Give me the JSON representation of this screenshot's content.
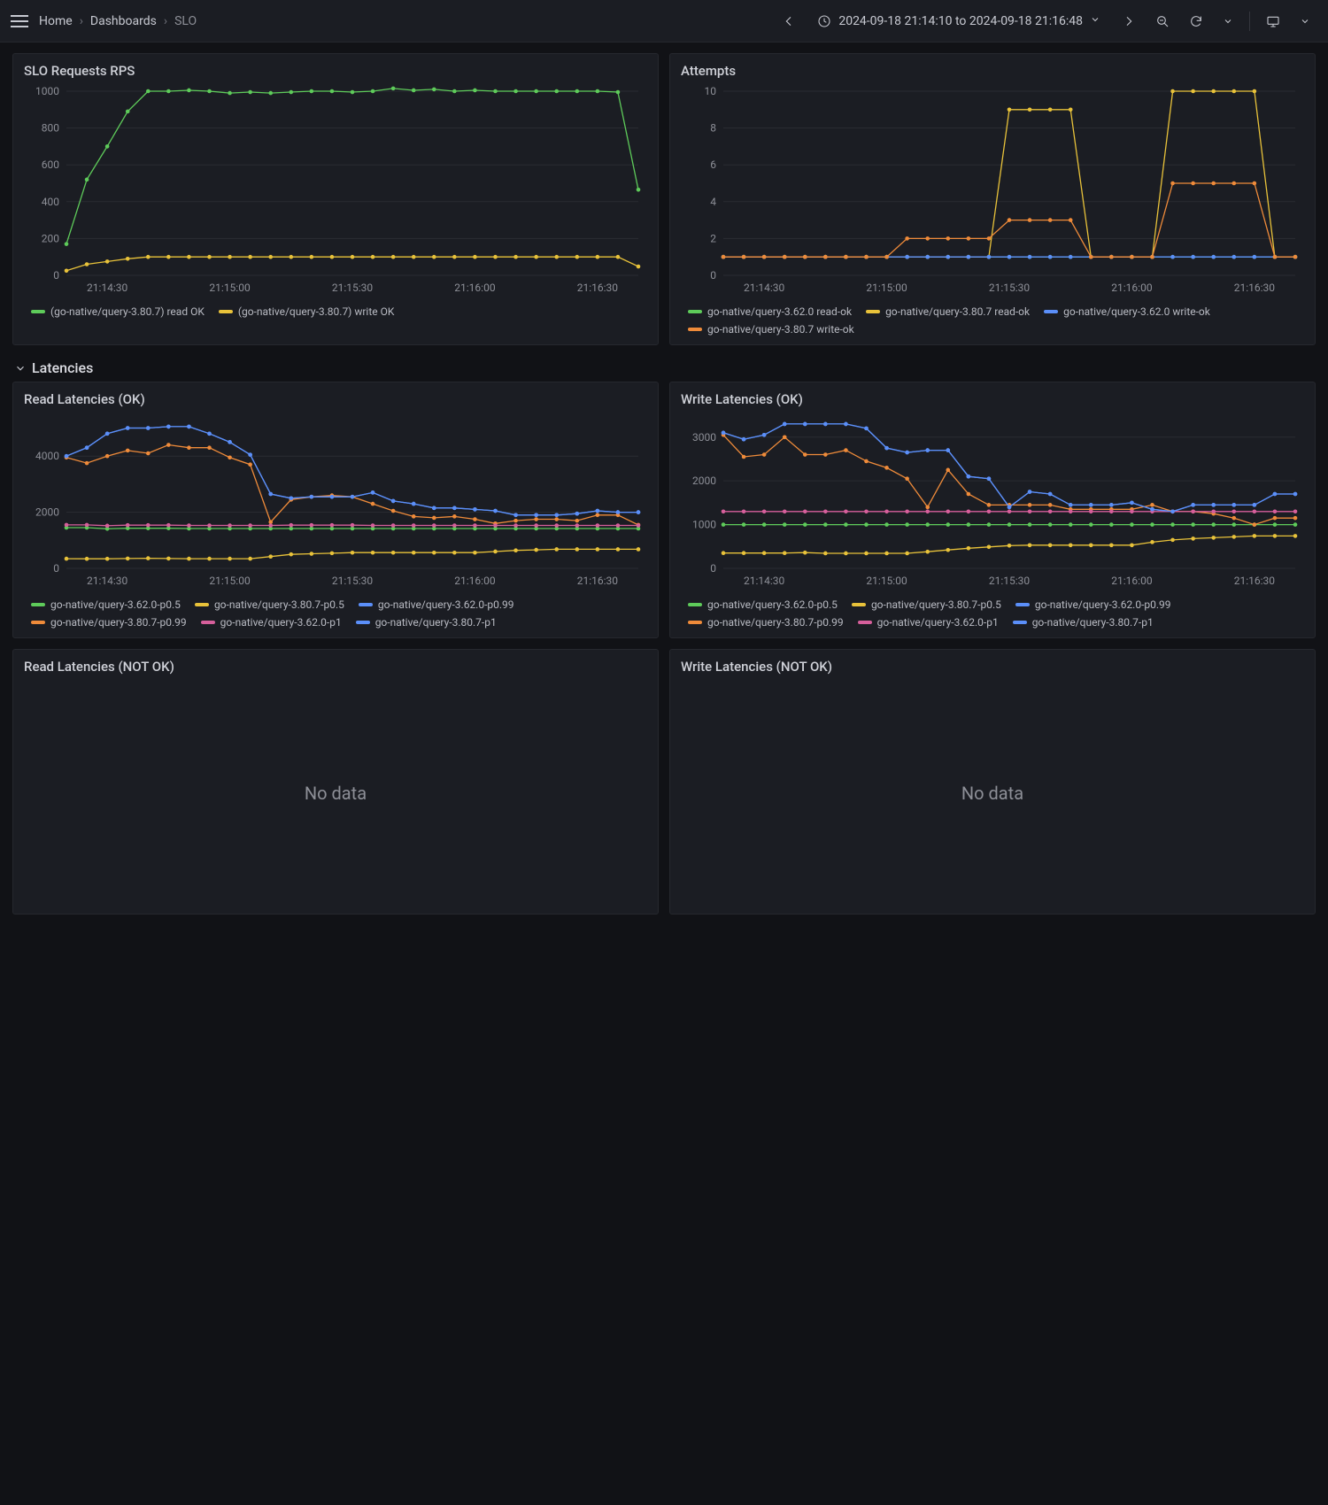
{
  "colors": {
    "bg": "#111216",
    "panel": "#1b1d23",
    "border": "#26282e",
    "grid": "#2a2c33",
    "text": "#c7c9d1",
    "muted": "#8d8f97"
  },
  "breadcrumb": {
    "home": "Home",
    "dashboards": "Dashboards",
    "current": "SLO"
  },
  "timerange": {
    "label": "2024-09-18 21:14:10 to 2024-09-18 21:16:48"
  },
  "section": {
    "latencies": "Latencies"
  },
  "nodata": "No data",
  "x_ticks": [
    "21:14:30",
    "21:15:00",
    "21:15:30",
    "21:16:00",
    "21:16:30"
  ],
  "n_points": 29,
  "marker_r": 2.3,
  "panels": {
    "slo": {
      "title": "SLO Requests RPS",
      "ylim": [
        0,
        1000
      ],
      "ystep": 200,
      "series": [
        {
          "label": "(go-native/query-3.80.7) read OK",
          "color": "#5ecb5a",
          "y": [
            170,
            520,
            700,
            890,
            1000,
            1000,
            1005,
            1000,
            990,
            995,
            990,
            995,
            1000,
            1000,
            995,
            1000,
            1015,
            1005,
            1010,
            1000,
            1005,
            1000,
            1000,
            1000,
            1000,
            1000,
            1000,
            995,
            465
          ]
        },
        {
          "label": "(go-native/query-3.80.7) write OK",
          "color": "#e8c23a",
          "y": [
            25,
            60,
            75,
            90,
            100,
            100,
            100,
            100,
            100,
            100,
            100,
            100,
            100,
            100,
            100,
            100,
            100,
            100,
            100,
            100,
            100,
            100,
            100,
            100,
            100,
            100,
            100,
            100,
            48
          ]
        }
      ]
    },
    "attempts": {
      "title": "Attempts",
      "ylim": [
        0,
        10
      ],
      "ystep": 2,
      "series": [
        {
          "label": "go-native/query-3.62.0 read-ok",
          "color": "#5ecb5a",
          "y": [
            1,
            1,
            1,
            1,
            1,
            1,
            1,
            1,
            1,
            1,
            1,
            1,
            1,
            1,
            1,
            1,
            1,
            1,
            1,
            1,
            1,
            1,
            1,
            1,
            1,
            1,
            1,
            1,
            1
          ]
        },
        {
          "label": "go-native/query-3.80.7 read-ok",
          "color": "#e8c23a",
          "y": [
            1,
            1,
            1,
            1,
            1,
            1,
            1,
            1,
            1,
            1,
            1,
            1,
            1,
            1,
            9,
            9,
            9,
            9,
            1,
            1,
            1,
            1,
            10,
            10,
            10,
            10,
            10,
            1,
            1
          ]
        },
        {
          "label": "go-native/query-3.62.0 write-ok",
          "color": "#5b8ff9",
          "y": [
            1,
            1,
            1,
            1,
            1,
            1,
            1,
            1,
            1,
            1,
            1,
            1,
            1,
            1,
            1,
            1,
            1,
            1,
            1,
            1,
            1,
            1,
            1,
            1,
            1,
            1,
            1,
            1,
            1
          ]
        },
        {
          "label": "go-native/query-3.80.7 write-ok",
          "color": "#ef8b3a",
          "y": [
            1,
            1,
            1,
            1,
            1,
            1,
            1,
            1,
            1,
            2,
            2,
            2,
            2,
            2,
            3,
            3,
            3,
            3,
            1,
            1,
            1,
            1,
            5,
            5,
            5,
            5,
            5,
            1,
            1
          ]
        }
      ]
    },
    "read_ok": {
      "title": "Read Latencies (OK)",
      "ylim": [
        0,
        5300
      ],
      "ystep": 2000,
      "series": [
        {
          "label": "go-native/query-3.62.0-p0.5",
          "color": "#5ecb5a",
          "y": [
            1450,
            1450,
            1410,
            1430,
            1430,
            1430,
            1420,
            1420,
            1420,
            1420,
            1420,
            1420,
            1420,
            1420,
            1420,
            1420,
            1420,
            1420,
            1420,
            1420,
            1420,
            1420,
            1420,
            1420,
            1420,
            1420,
            1420,
            1420,
            1420
          ]
        },
        {
          "label": "go-native/query-3.80.7-p0.5",
          "color": "#e8c23a",
          "y": [
            345,
            340,
            340,
            350,
            360,
            350,
            345,
            345,
            345,
            345,
            420,
            500,
            520,
            540,
            560,
            560,
            560,
            560,
            560,
            560,
            560,
            600,
            640,
            660,
            680,
            680,
            680,
            680,
            680
          ]
        },
        {
          "label": "go-native/query-3.62.0-p0.99",
          "color": "#5b8ff9",
          "y": [
            4000,
            4300,
            4800,
            5000,
            5000,
            5050,
            5050,
            4800,
            4500,
            4050,
            2650,
            2500,
            2550,
            2550,
            2550,
            2700,
            2400,
            2300,
            2150,
            2150,
            2100,
            2050,
            1900,
            1900,
            1900,
            1950,
            2050,
            2000,
            2000
          ]
        },
        {
          "label": "go-native/query-3.80.7-p0.99",
          "color": "#ef8b3a",
          "y": [
            3950,
            3750,
            4000,
            4200,
            4100,
            4400,
            4300,
            4300,
            3950,
            3700,
            1650,
            2450,
            2550,
            2600,
            2550,
            2300,
            2050,
            1850,
            1800,
            1850,
            1750,
            1600,
            1700,
            1750,
            1750,
            1700,
            1900,
            1900,
            1550
          ]
        },
        {
          "label": "go-native/query-3.62.0-p1",
          "color": "#d65f9b",
          "y": [
            1550,
            1550,
            1520,
            1540,
            1540,
            1540,
            1530,
            1530,
            1530,
            1530,
            1530,
            1540,
            1540,
            1540,
            1540,
            1530,
            1530,
            1530,
            1530,
            1530,
            1530,
            1530,
            1530,
            1530,
            1530,
            1530,
            1530,
            1530,
            1530
          ]
        },
        {
          "label": "go-native/query-3.80.7-p1",
          "color": "#5b8ff9",
          "y": [
            4000,
            4300,
            4800,
            5000,
            5000,
            5050,
            5050,
            4800,
            4500,
            4050,
            2650,
            2500,
            2550,
            2550,
            2550,
            2700,
            2400,
            2300,
            2150,
            2150,
            2100,
            2050,
            1900,
            1900,
            1900,
            1950,
            2050,
            2000,
            2000
          ]
        }
      ]
    },
    "write_ok": {
      "title": "Write Latencies (OK)",
      "ylim": [
        0,
        3400
      ],
      "ystep": 1000,
      "series": [
        {
          "label": "go-native/query-3.62.0-p0.5",
          "color": "#5ecb5a",
          "y": [
            1000,
            1000,
            1000,
            1000,
            1000,
            1000,
            1000,
            1000,
            1000,
            1000,
            1000,
            1000,
            1000,
            1000,
            1000,
            1000,
            1000,
            1000,
            1000,
            1000,
            1000,
            1000,
            1000,
            1000,
            1000,
            1000,
            1000,
            1000,
            1000
          ]
        },
        {
          "label": "go-native/query-3.80.7-p0.5",
          "color": "#e8c23a",
          "y": [
            350,
            350,
            350,
            350,
            360,
            345,
            345,
            345,
            345,
            345,
            380,
            420,
            460,
            490,
            520,
            530,
            530,
            530,
            530,
            530,
            530,
            600,
            650,
            680,
            700,
            720,
            740,
            740,
            740
          ]
        },
        {
          "label": "go-native/query-3.62.0-p0.99",
          "color": "#5b8ff9",
          "y": [
            3100,
            2950,
            3050,
            3300,
            3300,
            3300,
            3300,
            3200,
            2750,
            2650,
            2700,
            2700,
            2100,
            2050,
            1400,
            1750,
            1700,
            1450,
            1450,
            1450,
            1500,
            1350,
            1300,
            1450,
            1450,
            1450,
            1450,
            1700,
            1700
          ]
        },
        {
          "label": "go-native/query-3.80.7-p0.99",
          "color": "#ef8b3a",
          "y": [
            3050,
            2550,
            2600,
            3000,
            2600,
            2600,
            2700,
            2450,
            2300,
            2050,
            1400,
            2250,
            1700,
            1450,
            1450,
            1450,
            1450,
            1350,
            1350,
            1350,
            1350,
            1450,
            1300,
            1300,
            1250,
            1150,
            1000,
            1150,
            1150
          ]
        },
        {
          "label": "go-native/query-3.62.0-p1",
          "color": "#d65f9b",
          "y": [
            1300,
            1300,
            1300,
            1300,
            1300,
            1300,
            1300,
            1300,
            1300,
            1300,
            1300,
            1300,
            1300,
            1300,
            1300,
            1300,
            1300,
            1300,
            1300,
            1300,
            1300,
            1300,
            1300,
            1300,
            1300,
            1300,
            1300,
            1300,
            1300
          ]
        },
        {
          "label": "go-native/query-3.80.7-p1",
          "color": "#5b8ff9",
          "y": [
            3100,
            2950,
            3050,
            3300,
            3300,
            3300,
            3300,
            3200,
            2750,
            2650,
            2700,
            2700,
            2100,
            2050,
            1400,
            1750,
            1700,
            1450,
            1450,
            1450,
            1500,
            1350,
            1300,
            1450,
            1450,
            1450,
            1450,
            1700,
            1700
          ]
        }
      ]
    },
    "read_nok": {
      "title": "Read Latencies (NOT OK)"
    },
    "write_nok": {
      "title": "Write Latencies (NOT OK)"
    }
  },
  "chart_layout": {
    "top_h": 240,
    "top_legend_rows": 1,
    "lat_h": 200,
    "pad": {
      "l": 48,
      "r": 10,
      "t": 8,
      "b": 24
    }
  }
}
